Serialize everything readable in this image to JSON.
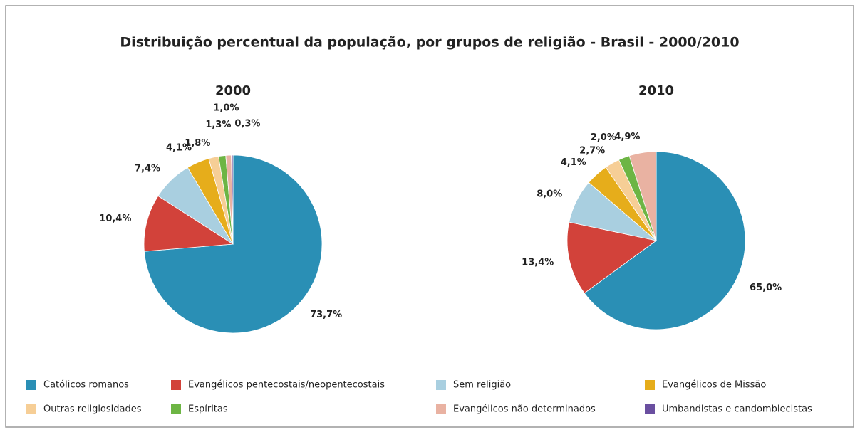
{
  "title": "Distribuição percentual da população, por grupos de religião - Brasil - 2000/2010",
  "legend": [
    {
      "name": "Católicos romanos",
      "color": "#2a8fb5"
    },
    {
      "name": "Evangélicos pentecostais/neopentecostais",
      "color": "#d2423a"
    },
    {
      "name": "Sem religião",
      "color": "#a9cfe0"
    },
    {
      "name": "Evangélicos de Missão",
      "color": "#e6ad1b"
    },
    {
      "name": "Outras religiosidades",
      "color": "#f6ce96"
    },
    {
      "name": "Espíritas",
      "color": "#6db544"
    },
    {
      "name": "Evangélicos não determinados",
      "color": "#e9b2a2"
    },
    {
      "name": "Umbandistas e candomblecistas",
      "color": "#6a4fa0"
    }
  ],
  "chart_data": [
    {
      "type": "pie",
      "title": "2000",
      "values": [
        73.7,
        10.4,
        7.4,
        4.1,
        1.8,
        1.3,
        1.0,
        0.3
      ],
      "value_labels": [
        "73,7%",
        "10,4%",
        "7,4%",
        "4,1%",
        "1,8%",
        "1,3%",
        "1,0%",
        "0,3%"
      ],
      "colors": [
        "#2a8fb5",
        "#d2423a",
        "#a9cfe0",
        "#e6ad1b",
        "#f6ce96",
        "#6db544",
        "#e9b2a2",
        "#6a4fa0"
      ]
    },
    {
      "type": "pie",
      "title": "2010",
      "values": [
        65.0,
        13.4,
        8.0,
        4.1,
        2.7,
        2.0,
        4.9
      ],
      "value_labels": [
        "65,0%",
        "13,4%",
        "8,0%",
        "4,1%",
        "2,7%",
        "2,0%",
        "4,9%"
      ],
      "colors": [
        "#2a8fb5",
        "#d2423a",
        "#a9cfe0",
        "#e6ad1b",
        "#f6ce96",
        "#6db544",
        "#e9b2a2"
      ]
    }
  ]
}
